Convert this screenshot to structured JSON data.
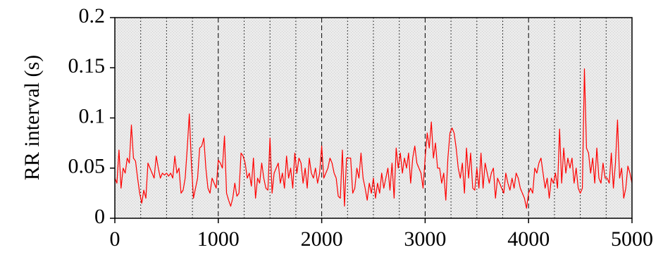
{
  "chart_data": {
    "type": "line",
    "y_label": "RR interval (s)",
    "xlim": [
      0,
      5000
    ],
    "ylim": [
      0,
      0.2
    ],
    "xticks": [
      0,
      1000,
      2000,
      3000,
      4000,
      5000
    ],
    "yticks": [
      0,
      0.05,
      0.1,
      0.15,
      0.2
    ],
    "x_minor_grid": [
      250,
      500,
      750,
      1250,
      1500,
      1750,
      2250,
      2500,
      2750,
      3250,
      3500,
      3750,
      4250,
      4500,
      4750
    ],
    "grid": true,
    "x": [
      0,
      20,
      40,
      60,
      80,
      100,
      120,
      140,
      160,
      180,
      200,
      220,
      240,
      260,
      280,
      300,
      320,
      340,
      360,
      380,
      400,
      420,
      440,
      460,
      480,
      500,
      520,
      540,
      560,
      580,
      600,
      620,
      640,
      660,
      680,
      700,
      720,
      740,
      760,
      780,
      800,
      820,
      840,
      860,
      880,
      900,
      920,
      940,
      960,
      980,
      1000,
      1020,
      1040,
      1060,
      1080,
      1100,
      1120,
      1140,
      1160,
      1180,
      1200,
      1220,
      1240,
      1260,
      1280,
      1300,
      1320,
      1340,
      1360,
      1380,
      1400,
      1420,
      1440,
      1460,
      1480,
      1500,
      1520,
      1540,
      1560,
      1580,
      1600,
      1620,
      1640,
      1660,
      1680,
      1700,
      1720,
      1740,
      1760,
      1780,
      1800,
      1820,
      1840,
      1860,
      1880,
      1900,
      1920,
      1940,
      1960,
      1980,
      2000,
      2020,
      2040,
      2060,
      2080,
      2100,
      2120,
      2140,
      2160,
      2180,
      2200,
      2220,
      2240,
      2260,
      2280,
      2300,
      2320,
      2340,
      2360,
      2380,
      2400,
      2420,
      2440,
      2460,
      2480,
      2500,
      2520,
      2540,
      2560,
      2580,
      2600,
      2620,
      2640,
      2660,
      2680,
      2700,
      2720,
      2740,
      2760,
      2780,
      2800,
      2820,
      2840,
      2860,
      2880,
      2900,
      2920,
      2940,
      2960,
      2980,
      3000,
      3020,
      3040,
      3060,
      3080,
      3100,
      3120,
      3140,
      3160,
      3180,
      3200,
      3220,
      3240,
      3260,
      3280,
      3300,
      3320,
      3340,
      3360,
      3380,
      3400,
      3420,
      3440,
      3460,
      3480,
      3500,
      3520,
      3540,
      3560,
      3580,
      3600,
      3620,
      3640,
      3660,
      3680,
      3700,
      3720,
      3740,
      3760,
      3780,
      3800,
      3820,
      3840,
      3860,
      3880,
      3900,
      3920,
      3940,
      3960,
      3980,
      4000,
      4020,
      4040,
      4060,
      4080,
      4100,
      4120,
      4140,
      4160,
      4180,
      4200,
      4220,
      4240,
      4260,
      4280,
      4300,
      4320,
      4340,
      4360,
      4380,
      4400,
      4420,
      4440,
      4460,
      4480,
      4500,
      4520,
      4540,
      4560,
      4580,
      4600,
      4620,
      4640,
      4660,
      4680,
      4700,
      4720,
      4740,
      4760,
      4780,
      4800,
      4820,
      4840,
      4860,
      4880,
      4900,
      4920,
      4940,
      4960,
      4980,
      5000
    ],
    "series": [
      {
        "color": "#ff0000",
        "values": [
          0.04,
          0.035,
          0.068,
          0.03,
          0.05,
          0.045,
          0.06,
          0.055,
          0.093,
          0.06,
          0.057,
          0.04,
          0.025,
          0.015,
          0.028,
          0.02,
          0.055,
          0.05,
          0.045,
          0.04,
          0.062,
          0.05,
          0.04,
          0.045,
          0.043,
          0.045,
          0.042,
          0.045,
          0.04,
          0.062,
          0.045,
          0.05,
          0.025,
          0.028,
          0.04,
          0.07,
          0.104,
          0.055,
          0.02,
          0.03,
          0.04,
          0.07,
          0.072,
          0.08,
          0.05,
          0.03,
          0.025,
          0.04,
          0.035,
          0.03,
          0.058,
          0.055,
          0.05,
          0.082,
          0.025,
          0.018,
          0.012,
          0.02,
          0.035,
          0.022,
          0.025,
          0.065,
          0.062,
          0.055,
          0.04,
          0.045,
          0.032,
          0.06,
          0.02,
          0.04,
          0.035,
          0.055,
          0.04,
          0.03,
          0.028,
          0.08,
          0.025,
          0.045,
          0.05,
          0.055,
          0.035,
          0.045,
          0.03,
          0.062,
          0.04,
          0.05,
          0.03,
          0.065,
          0.045,
          0.06,
          0.055,
          0.035,
          0.05,
          0.03,
          0.06,
          0.045,
          0.04,
          0.05,
          0.035,
          0.045,
          0.072,
          0.04,
          0.045,
          0.05,
          0.06,
          0.055,
          0.045,
          0.04,
          0.022,
          0.02,
          0.068,
          0.012,
          0.06,
          0.06,
          0.06,
          0.025,
          0.03,
          0.05,
          0.04,
          0.065,
          0.04,
          0.03,
          0.018,
          0.035,
          0.025,
          0.04,
          0.02,
          0.035,
          0.025,
          0.045,
          0.03,
          0.04,
          0.05,
          0.028,
          0.055,
          0.02,
          0.07,
          0.05,
          0.065,
          0.045,
          0.06,
          0.05,
          0.065,
          0.035,
          0.06,
          0.072,
          0.055,
          0.05,
          0.045,
          0.03,
          0.06,
          0.085,
          0.07,
          0.096,
          0.06,
          0.075,
          0.05,
          0.05,
          0.035,
          0.045,
          0.018,
          0.06,
          0.085,
          0.09,
          0.085,
          0.07,
          0.05,
          0.04,
          0.055,
          0.025,
          0.07,
          0.04,
          0.065,
          0.03,
          0.028,
          0.05,
          0.03,
          0.065,
          0.03,
          0.055,
          0.045,
          0.035,
          0.045,
          0.05,
          0.02,
          0.04,
          0.035,
          0.03,
          0.025,
          0.045,
          0.035,
          0.028,
          0.04,
          0.03,
          0.045,
          0.04,
          0.03,
          0.025,
          0.02,
          0.01,
          0.025,
          0.03,
          0.025,
          0.05,
          0.045,
          0.055,
          0.06,
          0.045,
          0.03,
          0.04,
          0.02,
          0.04,
          0.035,
          0.045,
          0.03,
          0.089,
          0.035,
          0.07,
          0.045,
          0.06,
          0.05,
          0.06,
          0.035,
          0.05,
          0.03,
          0.025,
          0.03,
          0.149,
          0.07,
          0.065,
          0.045,
          0.06,
          0.035,
          0.07,
          0.04,
          0.035,
          0.055,
          0.04,
          0.04,
          0.035,
          0.065,
          0.03,
          0.055,
          0.098,
          0.04,
          0.05,
          0.02,
          0.03,
          0.052,
          0.045,
          0.035
        ]
      }
    ]
  }
}
